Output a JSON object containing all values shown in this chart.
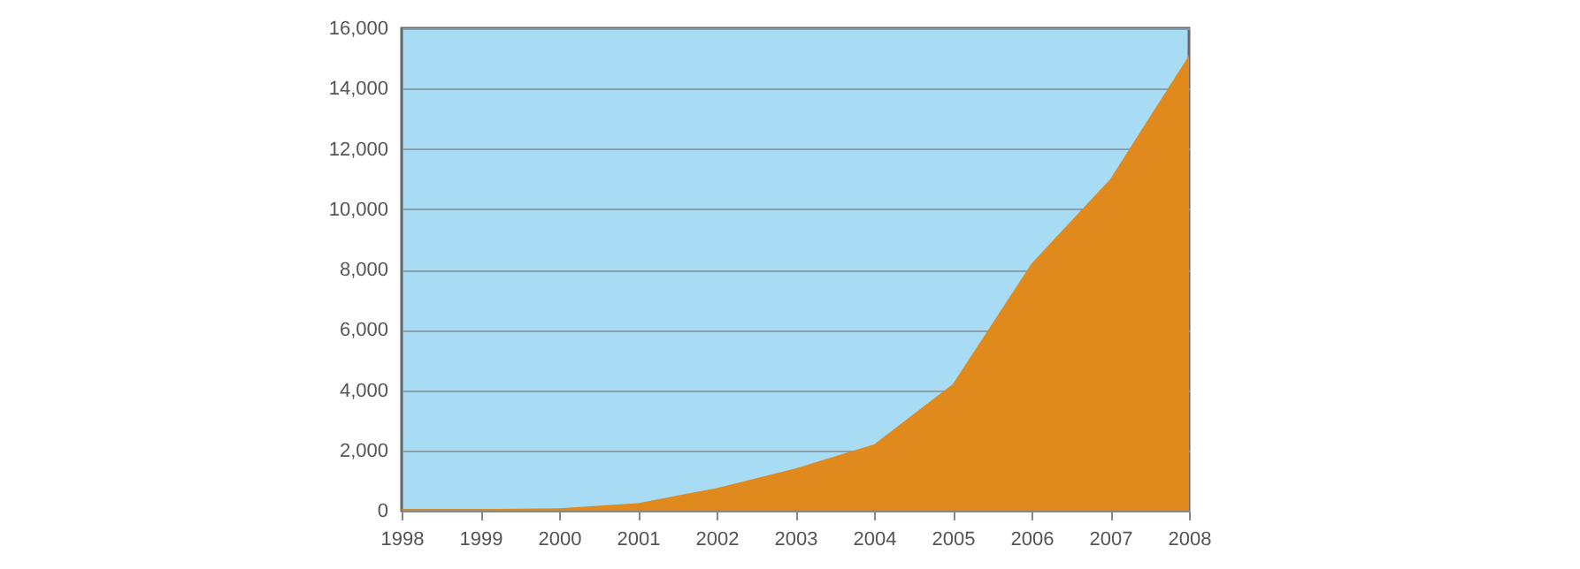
{
  "chart_data": {
    "type": "area",
    "x": [
      1998,
      1999,
      2000,
      2001,
      2002,
      2003,
      2004,
      2005,
      2006,
      2007,
      2008
    ],
    "series": [
      {
        "color": "#e08a1e",
        "values": [
          50,
          50,
          80,
          250,
          750,
          1400,
          2200,
          4200,
          8200,
          11000,
          15100
        ]
      }
    ],
    "xlim": [
      1998,
      2008
    ],
    "xticks": [
      1998,
      1999,
      2000,
      2001,
      2002,
      2003,
      2004,
      2005,
      2006,
      2007,
      2008
    ],
    "ylim": [
      0,
      16000
    ],
    "yticks": [
      0,
      {
        "value": 2000,
        "label": "2,000"
      },
      {
        "value": 4000,
        "label": "4,000"
      },
      {
        "value": 6000,
        "label": "6,000"
      },
      {
        "value": 8000,
        "label": "8,000"
      },
      {
        "value": 10000,
        "label": "10,000"
      },
      {
        "value": 12000,
        "label": "12,000"
      },
      {
        "value": 14000,
        "label": "14,000"
      },
      {
        "value": 16000,
        "label": "16,000"
      }
    ],
    "grid": "y"
  }
}
